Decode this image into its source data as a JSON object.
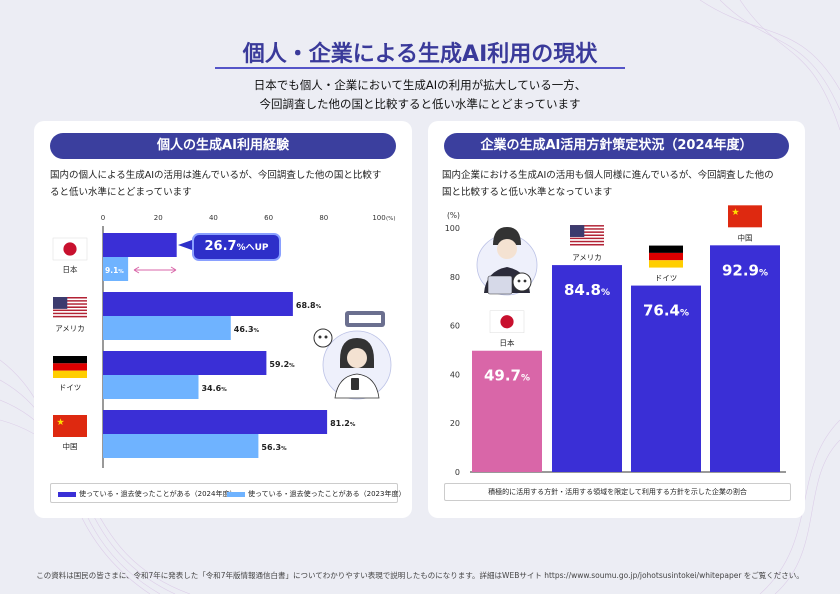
{
  "header": {
    "title": "個人・企業による生成AI利用の現状",
    "subtitle_lines": [
      "日本でも個人・企業において生成AIの利用が拡大している一方、",
      "今回調査した他の国と比較すると低い水準にとどまっています"
    ]
  },
  "left_panel": {
    "title": "個人の生成AI利用経験",
    "description_lines": [
      "国内の個人による生成AIの活用は進んでいるが、今回調査した他の国と比較す",
      "ると低い水準にとどまっています"
    ],
    "callout": {
      "value": "26.7",
      "unit": "%へUP"
    }
  },
  "right_panel": {
    "title": "企業の生成AI活用方針策定状況（2024年度）",
    "description_lines": [
      "国内企業における生成AIの活用も個人同様に進んでいるが、今回調査した他の",
      "国と比較すると低い水準となっています"
    ],
    "note": "積極的に活用する方針・活用する領域を限定して利用する方針を示した企業の割合"
  },
  "footer": {
    "text": "この資料は国民の皆さまに、令和7年に発表した「令和7年版情報通信白書」についてわかりやすい表現で説明したものになります。詳細はWEBサイト https://www.soumu.go.jp/johotsusintokei/whitepaper をご覧ください。"
  },
  "colors": {
    "navy": "#3b3f9e",
    "series_2024": "#3a2fd6",
    "series_2023": "#6fb3ff",
    "japan_bar": "#d966a8",
    "corporate_bar": "#3a2fd6"
  },
  "chart_data": [
    {
      "type": "bar",
      "orientation": "horizontal",
      "categories": [
        "日本",
        "アメリカ",
        "ドイツ",
        "中国"
      ],
      "series": [
        {
          "name": "使っている・過去使ったことがある（2024年度）",
          "values": [
            26.7,
            68.8,
            59.2,
            81.2
          ]
        },
        {
          "name": "使っている・過去使ったことがある（2023年度）",
          "values": [
            9.1,
            46.3,
            34.6,
            56.3
          ]
        }
      ],
      "value_unit": "%",
      "xlim": [
        0,
        100
      ],
      "ticks": [
        "0",
        "20",
        "40",
        "60",
        "80",
        "100"
      ],
      "tick_unit": "(%)",
      "legend_position": "bottom"
    },
    {
      "type": "bar",
      "orientation": "vertical",
      "categories": [
        "日本",
        "アメリカ",
        "ドイツ",
        "中国"
      ],
      "values": [
        49.7,
        84.8,
        76.4,
        92.9
      ],
      "value_unit": "%",
      "ylim": [
        0,
        100
      ],
      "ticks": [
        "0",
        "20",
        "40",
        "60",
        "80",
        "100"
      ],
      "ylabel": "(%)"
    }
  ]
}
